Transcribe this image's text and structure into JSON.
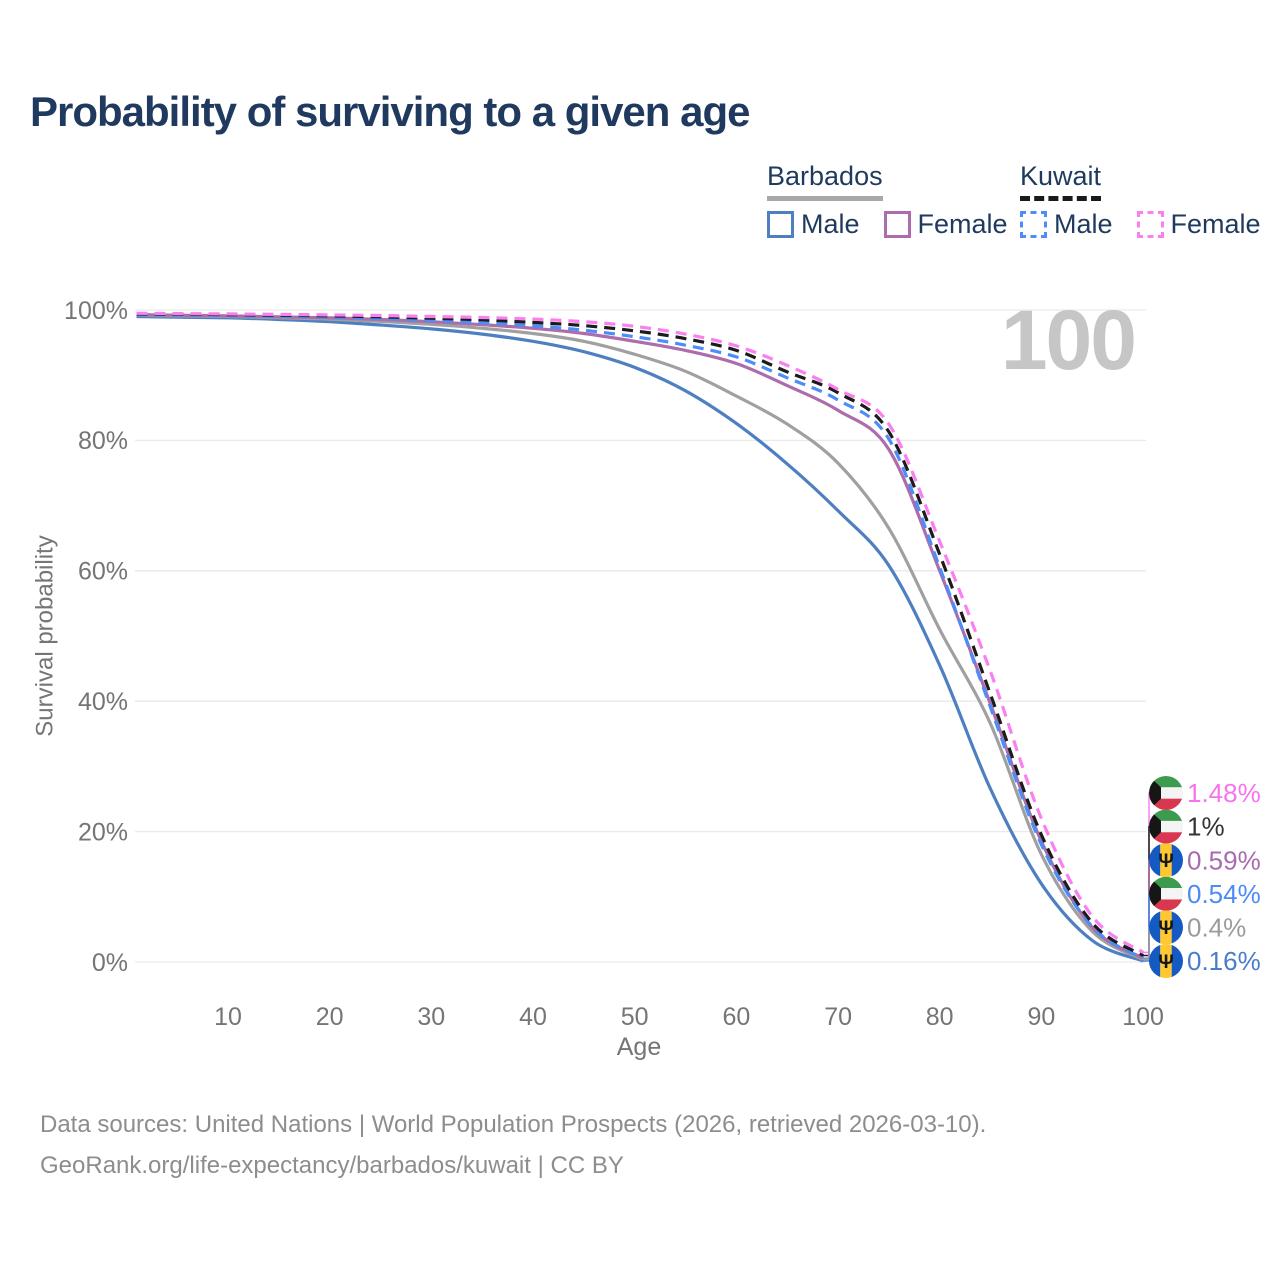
{
  "title": "Probability of surviving to a given age",
  "watermark": "100",
  "legend": {
    "groups": [
      {
        "country": "Barbados",
        "line_color": "#a8a8a8",
        "line_style": "solid",
        "items": [
          {
            "label": "Male",
            "color": "#4e7fc1",
            "dashed": false
          },
          {
            "label": "Female",
            "color": "#ad6cab",
            "dashed": false
          }
        ]
      },
      {
        "country": "Kuwait",
        "line_color": "#1a1a1a",
        "line_style": "dashed",
        "items": [
          {
            "label": "Male",
            "color": "#4c8df8",
            "dashed": true
          },
          {
            "label": "Female",
            "color": "#fa80f0",
            "dashed": true
          }
        ]
      }
    ]
  },
  "chart_data": {
    "type": "line",
    "title": "Probability of surviving to a given age",
    "xlabel": "Age",
    "ylabel": "Survival probability",
    "xlim": [
      0,
      100
    ],
    "ylim": [
      0,
      100
    ],
    "x_ticks": [
      10,
      20,
      30,
      40,
      50,
      60,
      70,
      80,
      90,
      100
    ],
    "y_ticks": [
      0,
      20,
      40,
      60,
      80,
      100
    ],
    "y_tick_suffix": "%",
    "grid": "horizontal-only",
    "legend_position": "top-right",
    "ages": [
      0,
      5,
      10,
      15,
      20,
      25,
      30,
      35,
      40,
      45,
      50,
      55,
      60,
      65,
      70,
      75,
      80,
      85,
      90,
      95,
      100
    ],
    "series": [
      {
        "id": "barbados-male",
        "country": "barbados",
        "country_label": "Barbados",
        "sex": "Male",
        "color": "#4e7fc1",
        "label_color": "#4a7dc9",
        "dashed": false,
        "flag": "barbados",
        "end_label": "0.16%",
        "values": [
          99.0,
          98.9,
          98.8,
          98.55,
          98.2,
          97.7,
          97.1,
          96.3,
          95.2,
          93.6,
          91.2,
          87.6,
          82.6,
          76.4,
          69.2,
          60.8,
          45.5,
          26.5,
          12.0,
          3.3,
          0.16
        ]
      },
      {
        "id": "barbados-all",
        "country": "barbados",
        "country_label": "Barbados",
        "sex": "Both sexes",
        "color": "#a0a0a0",
        "label_color": "#9b9b9b",
        "dashed": false,
        "flag": "barbados",
        "end_label": "0.4%",
        "values": [
          99.2,
          99.1,
          99.0,
          98.8,
          98.6,
          98.25,
          97.8,
          97.2,
          96.4,
          95.2,
          93.2,
          90.6,
          86.8,
          82.5,
          76.5,
          66.5,
          51.0,
          36.5,
          16.5,
          4.7,
          0.4
        ]
      },
      {
        "id": "barbados-female",
        "country": "barbados",
        "country_label": "Barbados",
        "sex": "Female",
        "color": "#ad6cab",
        "label_color": "#a76bae",
        "dashed": false,
        "flag": "barbados",
        "end_label": "0.59%",
        "values": [
          99.3,
          99.2,
          99.1,
          98.95,
          98.8,
          98.55,
          98.2,
          97.75,
          97.2,
          96.4,
          95.2,
          93.8,
          91.8,
          88.4,
          84.6,
          78.6,
          60.0,
          39.5,
          18.5,
          5.3,
          0.59
        ]
      },
      {
        "id": "kuwait-male",
        "country": "kuwait",
        "country_label": "Kuwait",
        "sex": "Male",
        "color": "#4c8df8",
        "label_color": "#4b8bf5",
        "dashed": true,
        "flag": "kuwait",
        "end_label": "0.54%",
        "values": [
          99.3,
          99.25,
          99.2,
          99.05,
          98.9,
          98.7,
          98.4,
          98.05,
          97.6,
          96.9,
          95.9,
          94.6,
          92.8,
          89.6,
          86.2,
          80.2,
          60.5,
          39.0,
          18.0,
          5.4,
          0.54
        ]
      },
      {
        "id": "kuwait-all",
        "country": "kuwait",
        "country_label": "Kuwait",
        "sex": "Both sexes",
        "color": "#1c1c1c",
        "label_color": "#333333",
        "dashed": true,
        "flag": "kuwait",
        "end_label": "1%",
        "values": [
          99.4,
          99.35,
          99.3,
          99.2,
          99.1,
          98.95,
          98.75,
          98.5,
          98.1,
          97.6,
          96.8,
          95.6,
          93.8,
          90.5,
          87.3,
          81.3,
          62.5,
          41.0,
          19.5,
          6.0,
          1.0
        ]
      },
      {
        "id": "kuwait-female",
        "country": "kuwait",
        "country_label": "Kuwait",
        "sex": "Female",
        "color": "#fa80f0",
        "label_color": "#f773ee",
        "dashed": true,
        "flag": "kuwait",
        "end_label": "1.48%",
        "values": [
          99.5,
          99.45,
          99.4,
          99.32,
          99.25,
          99.15,
          99.0,
          98.85,
          98.6,
          98.2,
          97.5,
          96.3,
          94.5,
          91.5,
          87.8,
          82.5,
          64.5,
          44.5,
          22.0,
          7.0,
          1.48
        ]
      }
    ],
    "end_label_order": [
      "kuwait-female",
      "kuwait-all",
      "barbados-female",
      "kuwait-male",
      "barbados-all",
      "barbados-male"
    ]
  },
  "footer": {
    "line1": "Data sources: United Nations | World Population Prospects (2026, retrieved 2026-03-10).",
    "line2": "GeoRank.org/life-expectancy/barbados/kuwait | CC BY"
  }
}
